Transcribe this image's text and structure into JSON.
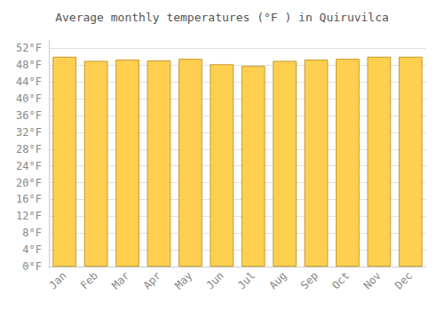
{
  "chart_data": {
    "type": "bar",
    "title": "Average monthly temperatures (°F ) in Quiruvilca",
    "categories": [
      "Jan",
      "Feb",
      "Mar",
      "Apr",
      "May",
      "Jun",
      "Jul",
      "Aug",
      "Sep",
      "Oct",
      "Nov",
      "Dec"
    ],
    "values": [
      50.0,
      49.0,
      49.3,
      49.1,
      49.5,
      48.2,
      47.8,
      49.0,
      49.3,
      49.5,
      50.0,
      50.0
    ],
    "color": "#FFD050",
    "ylim": [
      0,
      54
    ],
    "yticks": [
      {
        "value": 0,
        "label": "0°F"
      },
      {
        "value": 4,
        "label": "4°F"
      },
      {
        "value": 8,
        "label": "8°F"
      },
      {
        "value": 12,
        "label": "12°F"
      },
      {
        "value": 16,
        "label": "16°F"
      },
      {
        "value": 20,
        "label": "20°F"
      },
      {
        "value": 24,
        "label": "24°F"
      },
      {
        "value": 28,
        "label": "28°F"
      },
      {
        "value": 32,
        "label": "32°F"
      },
      {
        "value": 36,
        "label": "36°F"
      },
      {
        "value": 40,
        "label": "40°F"
      },
      {
        "value": 44,
        "label": "44°F"
      },
      {
        "value": 48,
        "label": "48°F"
      },
      {
        "value": 52,
        "label": "52°F"
      }
    ],
    "grid": true
  }
}
